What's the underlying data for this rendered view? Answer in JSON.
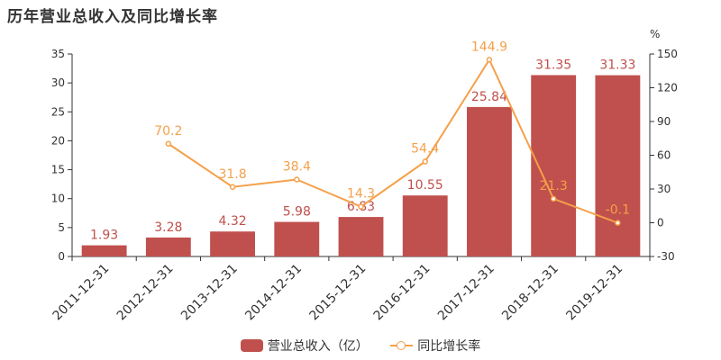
{
  "title": "历年营业总收入及同比增长率",
  "colors": {
    "bar": "#c0504d",
    "line": "#f5a04a",
    "bar_label": "#c0504d",
    "line_label": "#f5a04a",
    "axis": "#333333"
  },
  "chart_data": {
    "type": "bar",
    "categories": [
      "2011-12-31",
      "2012-12-31",
      "2013-12-31",
      "2014-12-31",
      "2015-12-31",
      "2016-12-31",
      "2017-12-31",
      "2018-12-31",
      "2019-12-31"
    ],
    "series": [
      {
        "name": "营业总收入（亿）",
        "type": "bar",
        "axis": "left",
        "values": [
          1.93,
          3.28,
          4.32,
          5.98,
          6.83,
          10.55,
          25.84,
          31.35,
          31.33
        ],
        "labels": [
          "1.93",
          "3.28",
          "4.32",
          "5.98",
          "6.83",
          "10.55",
          "25.84",
          "31.35",
          "31.33"
        ]
      },
      {
        "name": "同比增长率",
        "type": "line",
        "axis": "right",
        "values": [
          null,
          70.2,
          31.8,
          38.4,
          14.3,
          54.4,
          144.9,
          21.3,
          -0.1
        ],
        "labels": [
          "",
          "70.2",
          "31.8",
          "38.4",
          "14.3",
          "54.4",
          "144.9",
          "21.3",
          "-0.1"
        ]
      }
    ],
    "y_left": {
      "min": 0,
      "max": 35,
      "ticks": [
        "0",
        "5",
        "10",
        "15",
        "20",
        "25",
        "30",
        "35"
      ]
    },
    "y_right": {
      "min": -30,
      "max": 150,
      "unit": "%",
      "ticks": [
        "-30",
        "0",
        "30",
        "60",
        "90",
        "120",
        "150"
      ]
    },
    "grid": false,
    "legend": "bottom"
  }
}
